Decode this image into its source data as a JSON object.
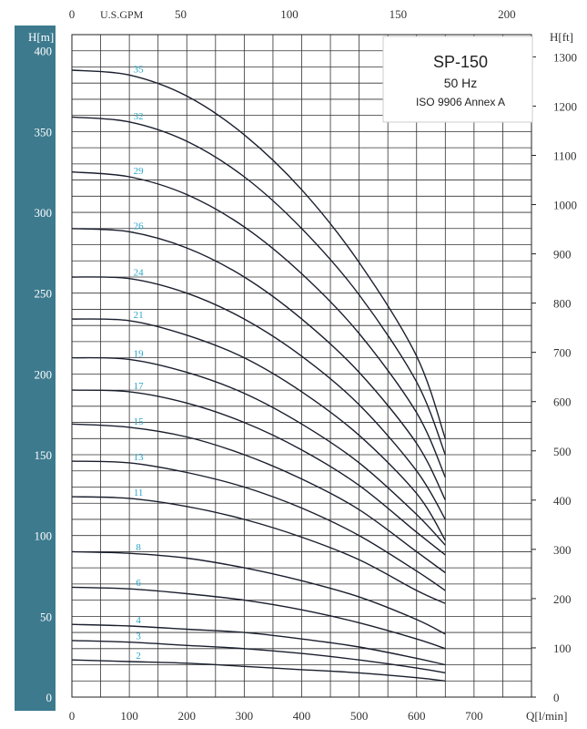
{
  "colors": {
    "band": "#3d7a8e",
    "curve": "#1a1f2e",
    "label": "#2aa6c8",
    "grid": "#333333"
  },
  "chart_data": {
    "type": "line",
    "title": "SP-150",
    "subtitle": "50 Hz",
    "note": "ISO 9906 Annex A",
    "xlabel": "Q[l/min]",
    "x2label": "U.S.GPM",
    "ylabel": "H[m]",
    "y2label": "H[ft]",
    "xlim": [
      0,
      800
    ],
    "ylim": [
      0,
      410
    ],
    "grid": true,
    "x_ticks": [
      0,
      100,
      200,
      300,
      400,
      500,
      600,
      700
    ],
    "x2_ticks": [
      0,
      50,
      100,
      150,
      200
    ],
    "y_ticks": [
      0,
      50,
      100,
      150,
      200,
      250,
      300,
      350,
      400
    ],
    "y2_ticks": [
      0,
      100,
      200,
      300,
      400,
      500,
      600,
      700,
      800,
      900,
      1000,
      1100,
      1200,
      1300
    ],
    "x": [
      0,
      100,
      200,
      300,
      400,
      500,
      600,
      650
    ],
    "series": [
      {
        "name": "2",
        "values": [
          23,
          22,
          21,
          19,
          17,
          15,
          12,
          10
        ]
      },
      {
        "name": "3",
        "values": [
          35,
          34,
          32,
          30,
          27,
          23,
          18,
          15
        ]
      },
      {
        "name": "4",
        "values": [
          45,
          44,
          42,
          40,
          36,
          31,
          24,
          20
        ]
      },
      {
        "name": "6",
        "values": [
          68,
          67,
          64,
          60,
          54,
          46,
          36,
          30
        ]
      },
      {
        "name": "8",
        "values": [
          90,
          89,
          86,
          80,
          72,
          62,
          48,
          39
        ]
      },
      {
        "name": "11",
        "values": [
          124,
          123,
          118,
          110,
          99,
          85,
          66,
          58
        ]
      },
      {
        "name": "13",
        "values": [
          146,
          145,
          139,
          130,
          117,
          100,
          78,
          66
        ]
      },
      {
        "name": "15",
        "values": [
          169,
          167,
          161,
          150,
          135,
          116,
          90,
          77
        ]
      },
      {
        "name": "17",
        "values": [
          190,
          189,
          182,
          170,
          153,
          131,
          102,
          88
        ]
      },
      {
        "name": "19",
        "values": [
          210,
          209,
          201,
          188,
          169,
          145,
          113,
          94
        ]
      },
      {
        "name": "21",
        "values": [
          234,
          233,
          224,
          210,
          189,
          162,
          126,
          97
        ]
      },
      {
        "name": "24",
        "values": [
          260,
          259,
          250,
          234,
          211,
          181,
          140,
          110
        ]
      },
      {
        "name": "26",
        "values": [
          290,
          288,
          278,
          260,
          234,
          201,
          157,
          122
        ]
      },
      {
        "name": "29",
        "values": [
          325,
          322,
          311,
          291,
          262,
          225,
          176,
          136
        ]
      },
      {
        "name": "32",
        "values": [
          359,
          356,
          344,
          322,
          290,
          249,
          195,
          150
        ]
      },
      {
        "name": "35",
        "values": [
          388,
          385,
          372,
          348,
          314,
          269,
          211,
          160
        ]
      }
    ]
  }
}
